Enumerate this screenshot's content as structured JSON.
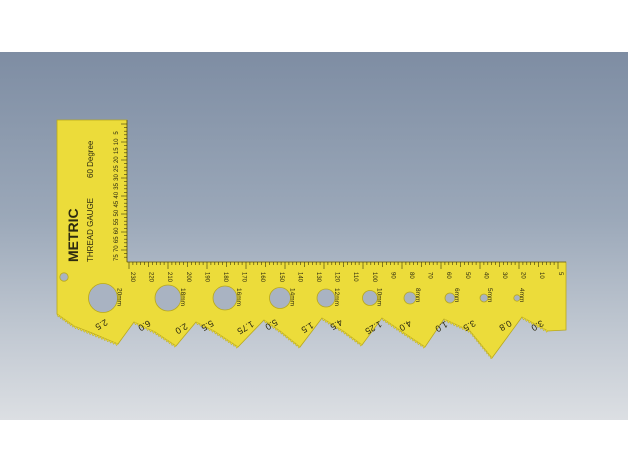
{
  "colors": {
    "gauge": "#ecdc3a",
    "gauge_edge": "#b8a81c",
    "ink": "#2d2a10",
    "hole": "#a9b3c2"
  },
  "gauge": {
    "title": "METRIC",
    "subtitle": "THREAD GAUGE",
    "angle_label": "60 Degree"
  },
  "vertical_scale": [
    "5",
    "10",
    "15",
    "20",
    "25",
    "30",
    "35",
    "40",
    "45",
    "50",
    "55",
    "60",
    "65",
    "70",
    "75"
  ],
  "horizontal_scale": [
    "230",
    "220",
    "210",
    "200",
    "190",
    "180",
    "170",
    "160",
    "150",
    "140",
    "130",
    "120",
    "110",
    "100",
    "90",
    "80",
    "70",
    "60",
    "50",
    "40",
    "30",
    "20",
    "10",
    "5"
  ],
  "holes": [
    {
      "label": "20mm"
    },
    {
      "label": "18mm"
    },
    {
      "label": "16mm"
    },
    {
      "label": "14mm"
    },
    {
      "label": "12mm"
    },
    {
      "label": "10mm"
    },
    {
      "label": "8mm"
    },
    {
      "label": "6mm"
    },
    {
      "label": "5mm"
    },
    {
      "label": "4mm"
    }
  ],
  "pitches": [
    "2.5",
    "6.0",
    "2.0",
    "5.5",
    "1.75",
    "5.0",
    "1.5",
    "4.5",
    "1.25",
    "4.0",
    "1.0",
    "3.5",
    "0.8",
    "3.0"
  ]
}
